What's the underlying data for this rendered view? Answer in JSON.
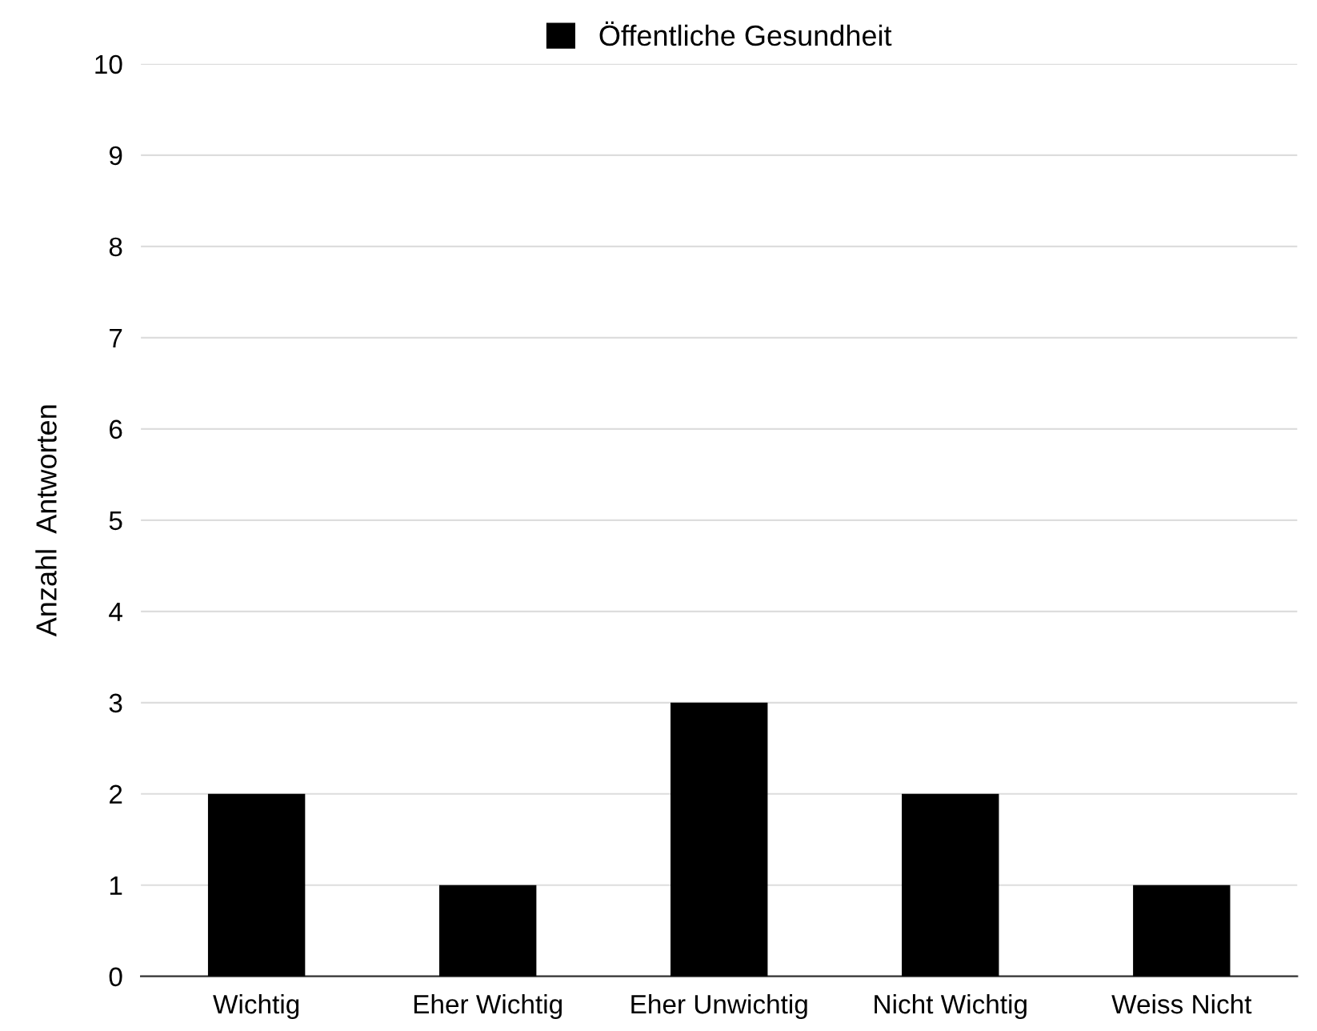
{
  "chart_data": {
    "type": "bar",
    "ylabel": "Anzahl  Antworten",
    "categories": [
      "Wichtig",
      "Eher Wichtig",
      "Eher Unwichtig",
      "Nicht Wichtig",
      "Weiss Nicht"
    ],
    "series": [
      {
        "name": "Öffentliche Gesundheit",
        "color": "#000000",
        "values": [
          2,
          1,
          3,
          2,
          1
        ]
      }
    ],
    "ylim": [
      0,
      10
    ],
    "yticks": [
      0,
      1,
      2,
      3,
      4,
      5,
      6,
      7,
      8,
      9,
      10
    ],
    "grid": "y",
    "legend": "top"
  }
}
